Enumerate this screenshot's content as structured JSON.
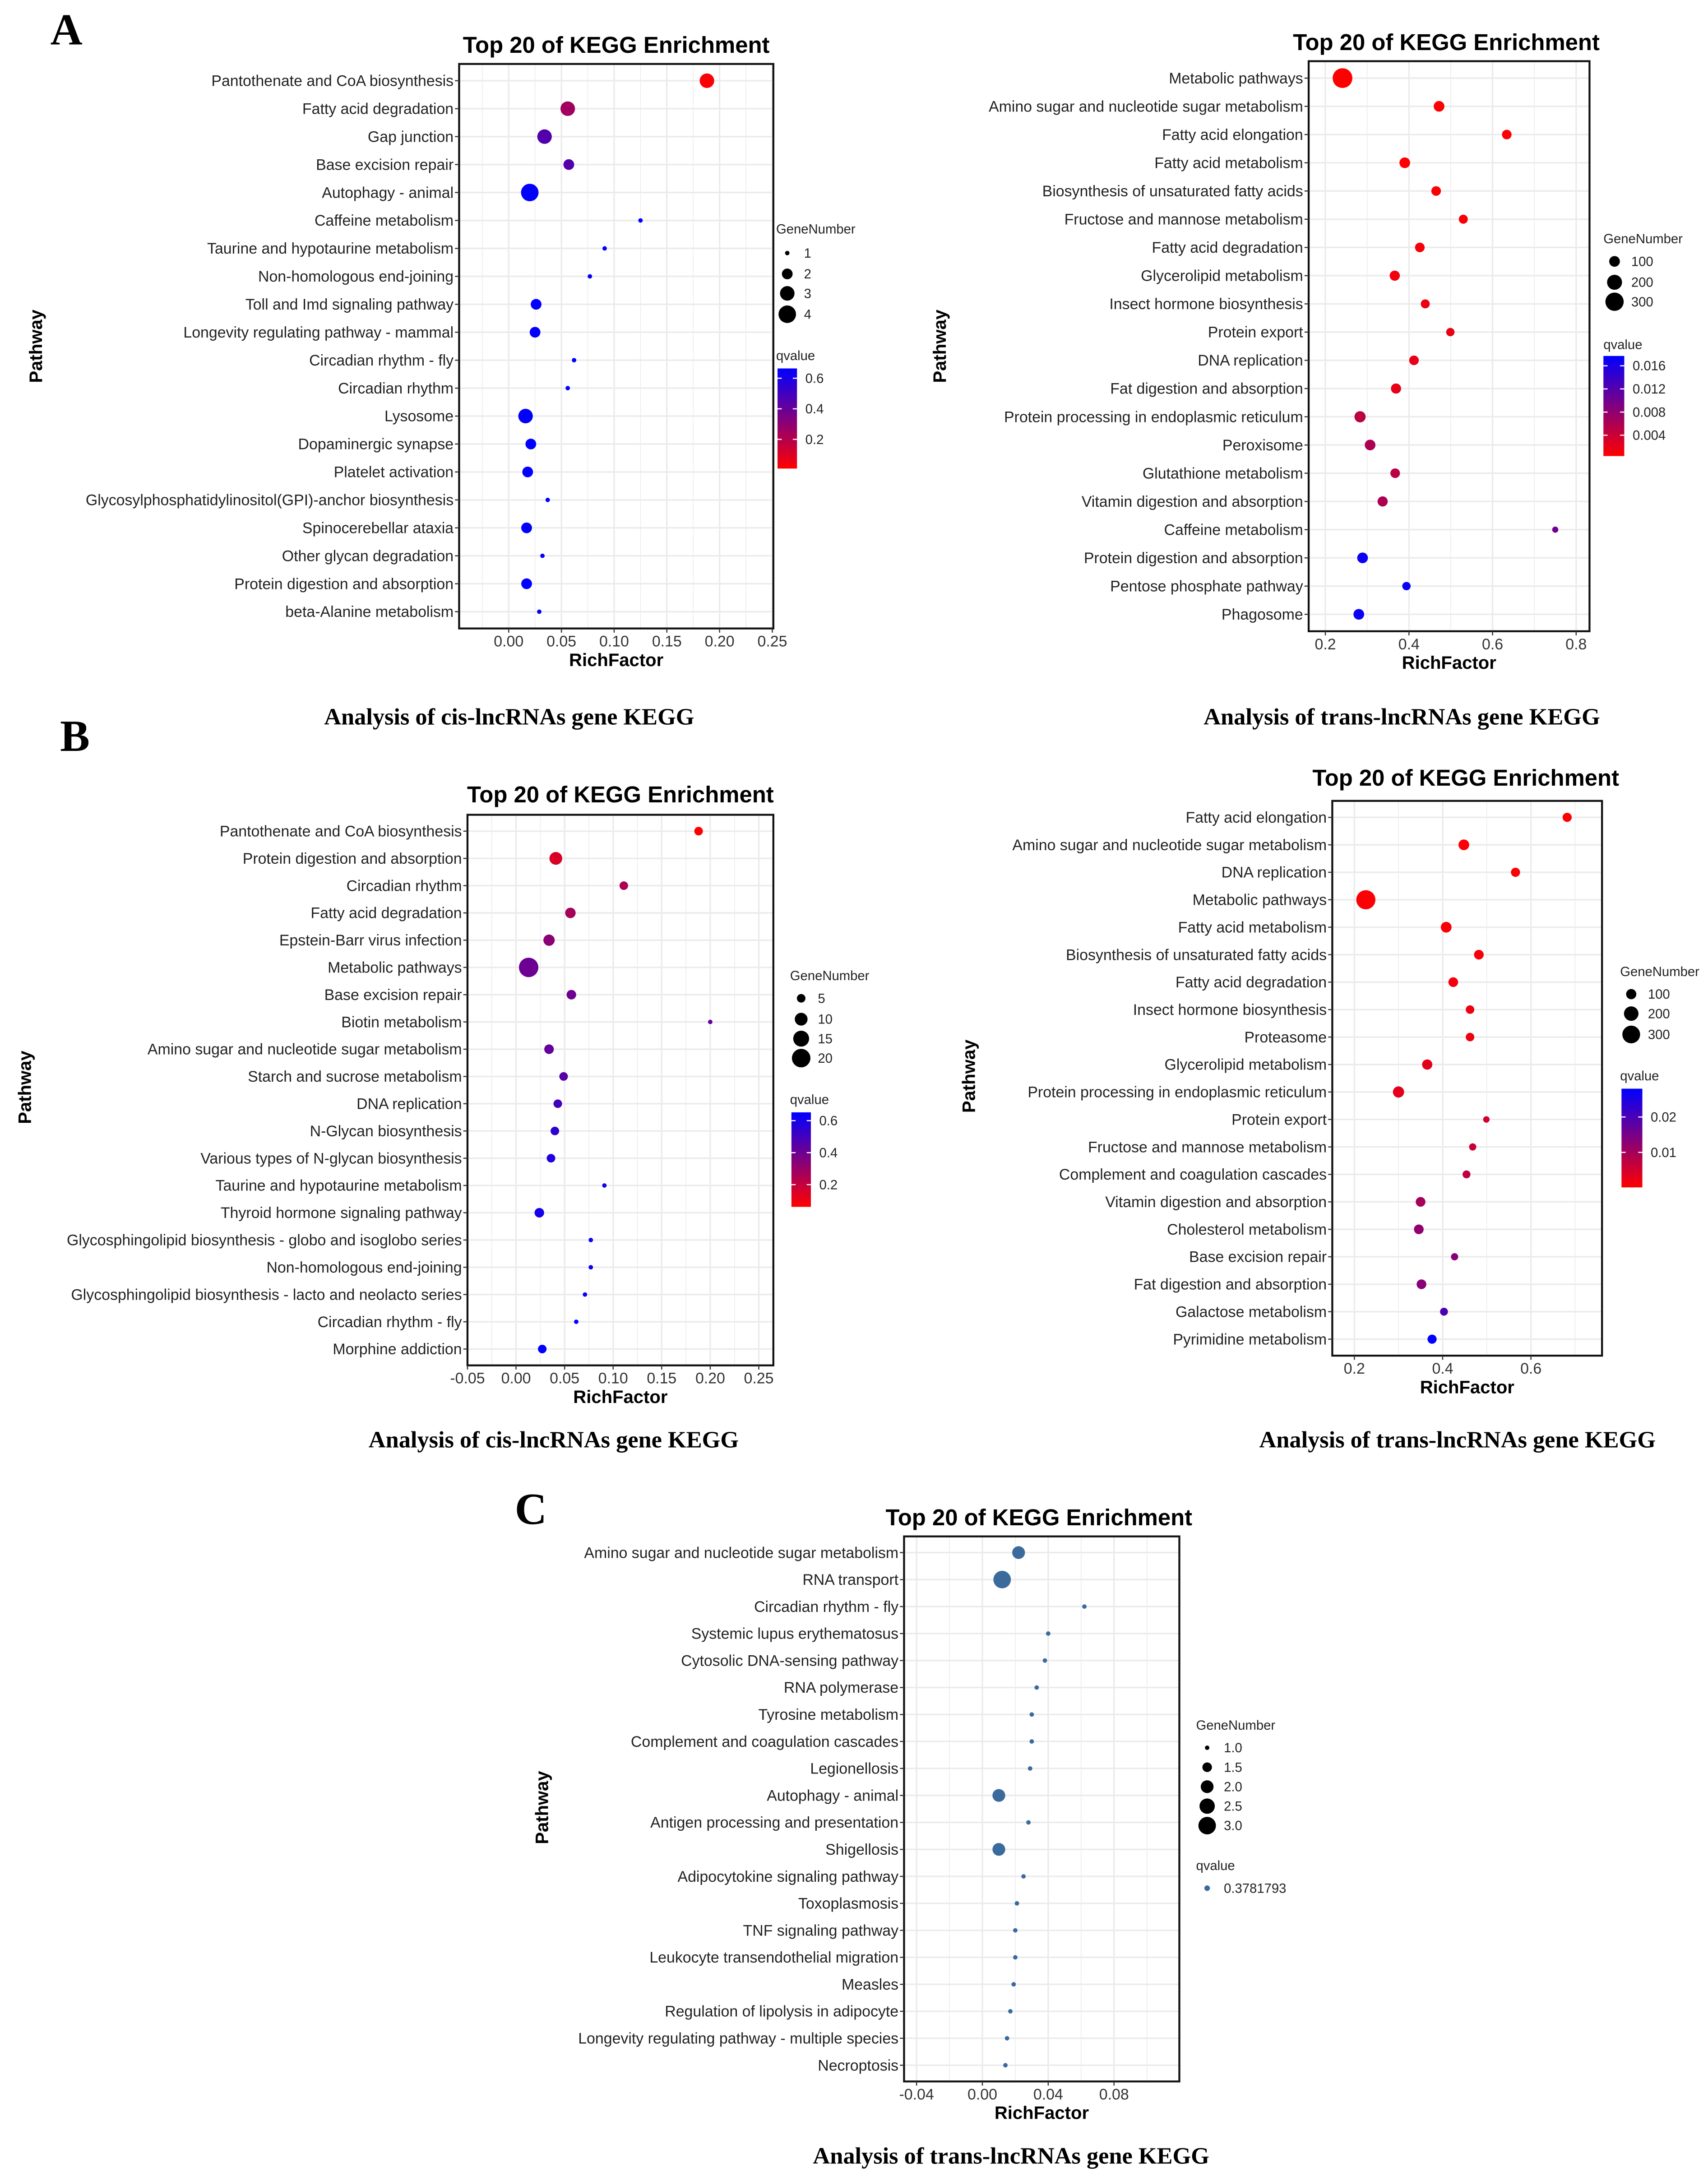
{
  "panel_labels": [
    "A",
    "B",
    "C"
  ],
  "chart_data": [
    {
      "type": "scatter",
      "title": "Top 20 of KEGG Enrichment",
      "xlabel": "RichFactor",
      "ylabel": "Pathway",
      "caption": "Analysis of cis-lncRNAs gene KEGG",
      "xlim": [
        -0.047,
        0.251
      ],
      "xticks": [
        "0.00",
        "0.05",
        "0.10",
        "0.15",
        "0.20",
        "0.25"
      ],
      "categories": [
        "Pantothenate and CoA biosynthesis",
        "Fatty acid degradation",
        "Gap junction",
        "Base excision repair",
        "Autophagy - animal",
        "Caffeine metabolism",
        "Taurine and hypotaurine metabolism",
        "Non-homologous end-joining",
        "Toll and Imd signaling pathway",
        "Longevity regulating pathway - mammal",
        "Circadian rhythm - fly",
        "Circadian rhythm",
        "Lysosome",
        "Dopaminergic synapse",
        "Platelet activation",
        "Glycosylphosphatidylinositol(GPI)-anchor biosynthesis",
        "Spinocerebellar ataxia",
        "Other glycan degradation",
        "Protein digestion and absorption",
        "beta-Alanine metabolism"
      ],
      "rich_factor": [
        0.188,
        0.056,
        0.034,
        0.057,
        0.02,
        0.125,
        0.091,
        0.077,
        0.026,
        0.025,
        0.062,
        0.056,
        0.016,
        0.021,
        0.018,
        0.037,
        0.017,
        0.032,
        0.017,
        0.029
      ],
      "gene_number": [
        3,
        3,
        3,
        2,
        4,
        1,
        1,
        1,
        2,
        2,
        1,
        1,
        3,
        2,
        2,
        1,
        2,
        1,
        2,
        1
      ],
      "qvalue": [
        0.02,
        0.25,
        0.45,
        0.45,
        0.66,
        0.66,
        0.66,
        0.66,
        0.66,
        0.66,
        0.66,
        0.66,
        0.66,
        0.66,
        0.66,
        0.66,
        0.66,
        0.66,
        0.66,
        0.66
      ],
      "size_legend": {
        "title": "GeneNumber",
        "values": [
          "1",
          "2",
          "3",
          "4"
        ],
        "domain": [
          1,
          4
        ]
      },
      "color_legend": {
        "title": "qvalue",
        "ticks": [
          "0.6",
          "0.4",
          "0.2"
        ],
        "range": [
          0.009,
          0.664
        ],
        "low_color": "#ff0000",
        "high_color": "#0000ff"
      }
    },
    {
      "type": "scatter",
      "title": "Top 20 of KEGG Enrichment",
      "xlabel": "RichFactor",
      "ylabel": "Pathway",
      "caption": "Analysis of trans-lncRNAs gene KEGG",
      "xlim": [
        0.16,
        0.832
      ],
      "xticks": [
        "0.2",
        "0.4",
        "0.6",
        "0.8"
      ],
      "categories": [
        "Metabolic pathways",
        "Amino sugar and nucleotide sugar metabolism",
        "Fatty acid elongation",
        "Fatty acid metabolism",
        "Biosynthesis of unsaturated fatty acids",
        "Fructose and mannose metabolism",
        "Fatty acid degradation",
        "Glycerolipid metabolism",
        "Insect hormone biosynthesis",
        "Protein export",
        "DNA replication",
        "Fat digestion and absorption",
        "Protein processing in endoplasmic reticulum",
        "Peroxisome",
        "Glutathione metabolism",
        "Vitamin digestion and absorption",
        "Caffeine metabolism",
        "Protein digestion and absorption",
        "Pentose phosphate pathway",
        "Phagosome"
      ],
      "rich_factor": [
        0.241,
        0.472,
        0.634,
        0.39,
        0.465,
        0.53,
        0.426,
        0.366,
        0.439,
        0.499,
        0.412,
        0.369,
        0.283,
        0.307,
        0.367,
        0.337,
        0.75,
        0.289,
        0.394,
        0.28
      ],
      "gene_number": [
        350,
        100,
        80,
        100,
        80,
        70,
        80,
        90,
        70,
        60,
        80,
        90,
        110,
        100,
        80,
        90,
        30,
        100,
        60,
        100
      ],
      "qvalue": [
        0.0002,
        0.0005,
        0.0005,
        0.0005,
        0.0007,
        0.0008,
        0.001,
        0.0012,
        0.0015,
        0.0018,
        0.002,
        0.002,
        0.005,
        0.006,
        0.005,
        0.006,
        0.01,
        0.017,
        0.017,
        0.017
      ],
      "size_legend": {
        "title": "GeneNumber",
        "values": [
          "100",
          "200",
          "300"
        ],
        "domain": [
          30,
          360
        ]
      },
      "color_legend": {
        "title": "qvalue",
        "ticks": [
          "0.016",
          "0.012",
          "0.008",
          "0.004"
        ],
        "range": [
          0.0004,
          0.0177
        ],
        "low_color": "#ff0000",
        "high_color": "#0000ff"
      }
    },
    {
      "type": "scatter",
      "title": "Top 20 of KEGG Enrichment",
      "xlabel": "RichFactor",
      "ylabel": "Pathway",
      "caption": "Analysis of cis-lncRNAs gene KEGG",
      "xlim": [
        -0.05,
        0.265
      ],
      "xticks": [
        "-0.05",
        "0.00",
        "0.05",
        "0.10",
        "0.15",
        "0.20",
        "0.25"
      ],
      "categories": [
        "Pantothenate and CoA biosynthesis",
        "Protein digestion and absorption",
        "Circadian rhythm",
        "Fatty acid degradation",
        "Epstein-Barr virus infection",
        "Metabolic pathways",
        "Base excision repair",
        "Biotin metabolism",
        "Amino sugar and nucleotide sugar metabolism",
        "Starch and sucrose metabolism",
        "DNA replication",
        "N-Glycan biosynthesis",
        "Various types of N-glycan biosynthesis",
        "Taurine and hypotaurine metabolism",
        "Thyroid hormone signaling pathway",
        "Glycosphingolipid biosynthesis - globo and isoglobo series",
        "Non-homologous end-joining",
        "Glycosphingolipid biosynthesis - lacto and neolacto series",
        "Circadian rhythm - fly",
        "Morphine addiction"
      ],
      "rich_factor": [
        0.188,
        0.041,
        0.111,
        0.056,
        0.034,
        0.013,
        0.057,
        0.2,
        0.034,
        0.049,
        0.043,
        0.04,
        0.036,
        0.091,
        0.024,
        0.077,
        0.077,
        0.071,
        0.062,
        0.027
      ],
      "gene_number": [
        5,
        10,
        5,
        7,
        8,
        22,
        6,
        2,
        6,
        5,
        5,
        5,
        5,
        2,
        6,
        2,
        2,
        2,
        2,
        5
      ],
      "qvalue": [
        0.04,
        0.15,
        0.25,
        0.27,
        0.33,
        0.4,
        0.4,
        0.42,
        0.42,
        0.45,
        0.5,
        0.55,
        0.58,
        0.6,
        0.6,
        0.62,
        0.62,
        0.62,
        0.65,
        0.67
      ],
      "size_legend": {
        "title": "GeneNumber",
        "values": [
          "5",
          "10",
          "15",
          "20"
        ],
        "domain": [
          2,
          22
        ]
      },
      "color_legend": {
        "title": "qvalue",
        "ticks": [
          "0.6",
          "0.4",
          "0.2"
        ],
        "range": [
          0.061,
          0.652
        ],
        "low_color": "#ff0000",
        "high_color": "#0000ff"
      }
    },
    {
      "type": "scatter",
      "title": "Top 20 of KEGG Enrichment",
      "xlabel": "RichFactor",
      "ylabel": "Pathway",
      "caption": "Analysis of trans-lncRNAs gene KEGG",
      "xlim": [
        0.15,
        0.761
      ],
      "xticks": [
        "0.2",
        "0.4",
        "0.6"
      ],
      "categories": [
        "Fatty acid elongation",
        "Amino sugar and nucleotide sugar metabolism",
        "DNA replication",
        "Metabolic pathways",
        "Fatty acid metabolism",
        "Biosynthesis of unsaturated fatty acids",
        "Fatty acid degradation",
        "Insect hormone biosynthesis",
        "Proteasome",
        "Glycerolipid metabolism",
        "Protein processing in endoplasmic reticulum",
        "Protein export",
        "Fructose and mannose metabolism",
        "Complement and coagulation cascades",
        "Vitamin digestion and absorption",
        "Cholesterol metabolism",
        "Base excision repair",
        "Fat digestion and absorption",
        "Galactose metabolism",
        "Pyrimidine metabolism"
      ],
      "rich_factor": [
        0.682,
        0.448,
        0.565,
        0.226,
        0.408,
        0.482,
        0.424,
        0.462,
        0.462,
        0.365,
        0.3,
        0.499,
        0.468,
        0.454,
        0.35,
        0.346,
        0.427,
        0.352,
        0.403,
        0.376
      ],
      "gene_number": [
        80,
        110,
        80,
        350,
        110,
        90,
        90,
        70,
        70,
        100,
        120,
        40,
        50,
        60,
        90,
        90,
        50,
        90,
        60,
        80
      ],
      "qvalue": [
        0.0003,
        0.0005,
        0.0005,
        0.0005,
        0.0008,
        0.001,
        0.0015,
        0.002,
        0.002,
        0.003,
        0.003,
        0.005,
        0.006,
        0.007,
        0.01,
        0.012,
        0.013,
        0.013,
        0.02,
        0.028
      ],
      "size_legend": {
        "title": "GeneNumber",
        "values": [
          "100",
          "200",
          "300"
        ],
        "domain": [
          30,
          360
        ]
      },
      "color_legend": {
        "title": "qvalue",
        "ticks": [
          "0.02",
          "0.01"
        ],
        "range": [
          0.0001,
          0.028
        ],
        "low_color": "#ff0000",
        "high_color": "#0000ff"
      }
    },
    {
      "type": "scatter",
      "title": "Top 20 of KEGG Enrichment",
      "xlabel": "RichFactor",
      "ylabel": "Pathway",
      "caption": "Analysis of trans-lncRNAs gene KEGG",
      "xlim": [
        -0.0476,
        0.1197
      ],
      "xticks": [
        "-0.04",
        "0.00",
        "0.04",
        "0.08"
      ],
      "categories": [
        "Amino sugar and nucleotide sugar metabolism",
        "RNA transport",
        "Circadian rhythm - fly",
        "Systemic lupus erythematosus",
        "Cytosolic DNA-sensing pathway",
        "RNA polymerase",
        "Tyrosine metabolism",
        "Complement and coagulation cascades",
        "Legionellosis",
        "Autophagy - animal",
        "Antigen processing and presentation",
        "Shigellosis",
        "Adipocytokine signaling pathway",
        "Toxoplasmosis",
        "TNF signaling pathway",
        "Leukocyte transendothelial migration",
        "Measles",
        "Regulation of lipolysis in adipocyte",
        "Longevity regulating pathway - multiple species",
        "Necroptosis"
      ],
      "rich_factor": [
        0.022,
        0.012,
        0.062,
        0.04,
        0.038,
        0.033,
        0.03,
        0.03,
        0.029,
        0.01,
        0.028,
        0.01,
        0.025,
        0.021,
        0.02,
        0.02,
        0.019,
        0.017,
        0.015,
        0.014
      ],
      "gene_number": [
        2,
        3,
        1,
        1,
        1,
        1,
        1,
        1,
        1,
        2,
        1,
        2,
        1,
        1,
        1,
        1,
        1,
        1,
        1,
        1
      ],
      "qvalue": [
        0.3781793,
        0.3781793,
        0.3781793,
        0.3781793,
        0.3781793,
        0.3781793,
        0.3781793,
        0.3781793,
        0.3781793,
        0.3781793,
        0.3781793,
        0.3781793,
        0.3781793,
        0.3781793,
        0.3781793,
        0.3781793,
        0.3781793,
        0.3781793,
        0.3781793,
        0.3781793
      ],
      "size_legend": {
        "title": "GeneNumber",
        "values": [
          "1.0",
          "1.5",
          "2.0",
          "2.5",
          "3.0"
        ],
        "domain": [
          1,
          3
        ]
      },
      "color_legend": {
        "title": "qvalue",
        "ticks": [
          "0.3781793"
        ],
        "single_color": "#3a6b9c"
      }
    }
  ]
}
